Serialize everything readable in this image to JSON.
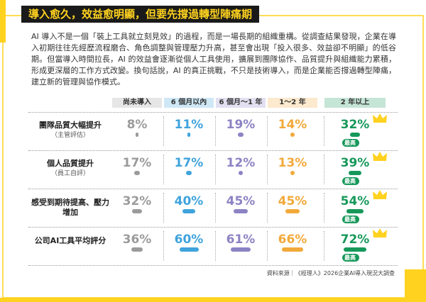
{
  "title": "導入愈久，效益愈明顯，但要先撐過轉型陣痛期",
  "intro": "AI 導入不是一個「裝上工具就立刻見效」的過程，而是一場長期的組織重構。從調查結果發現，企業在導入初期往往先經歷流程磨合、角色調整與管理壓力升高，甚至會出現「投入很多、效益卻不明顯」的低谷期。但當導入時間拉長，AI 的效益會逐漸從個人工具使用，擴展到團隊協作、品質提升與組織能力累積，形成更深層的工作方式改變。換句話說，AI 的真正挑戰，不只是技術導入，而是企業能否撐過轉型陣痛，建立新的管理與協作模式。",
  "columns": [
    "尚未導入",
    "6 個月以內",
    "6 個月～1 年",
    "1～2 年",
    "2 年以上"
  ],
  "column_colors": [
    "#9b9b9b",
    "#3fa3dc",
    "#8c83c4",
    "#f2a93b",
    "#16985a"
  ],
  "rows": [
    {
      "label": "團隊品質大幅提升",
      "note": "（主管評估）",
      "values": [
        8,
        11,
        19,
        14,
        32
      ],
      "value_labels": [
        "8%",
        "11%",
        "19%",
        "14%",
        "32%"
      ]
    },
    {
      "label": "個人品質提升",
      "note": "（員工自評）",
      "values": [
        17,
        17,
        12,
        13,
        39
      ],
      "value_labels": [
        "17%",
        "17%",
        "12%",
        "13%",
        "39%"
      ]
    },
    {
      "label": "感受到期待提高、壓力增加",
      "values": [
        32,
        40,
        45,
        45,
        54
      ],
      "value_labels": [
        "32%",
        "40%",
        "45%",
        "45%",
        "54%"
      ]
    },
    {
      "label": "公司AI工具平均評分",
      "values": [
        36,
        60,
        61,
        66,
        72
      ],
      "value_labels": [
        "36%",
        "60%",
        "61%",
        "66%",
        "72%"
      ]
    }
  ],
  "badge": "最高",
  "source": "資料來源｜《經理人》2026企業AI導入現況大調查"
}
